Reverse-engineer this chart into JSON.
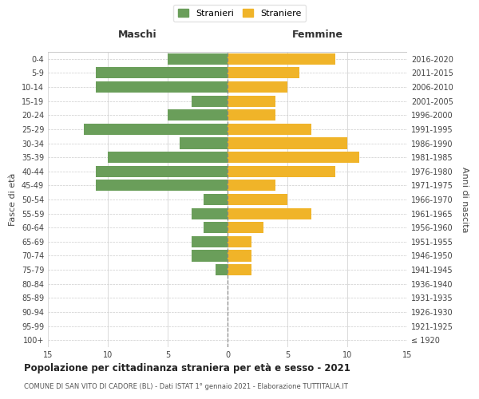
{
  "age_groups": [
    "100+",
    "95-99",
    "90-94",
    "85-89",
    "80-84",
    "75-79",
    "70-74",
    "65-69",
    "60-64",
    "55-59",
    "50-54",
    "45-49",
    "40-44",
    "35-39",
    "30-34",
    "25-29",
    "20-24",
    "15-19",
    "10-14",
    "5-9",
    "0-4"
  ],
  "birth_years": [
    "≤ 1920",
    "1921-1925",
    "1926-1930",
    "1931-1935",
    "1936-1940",
    "1941-1945",
    "1946-1950",
    "1951-1955",
    "1956-1960",
    "1961-1965",
    "1966-1970",
    "1971-1975",
    "1976-1980",
    "1981-1985",
    "1986-1990",
    "1991-1995",
    "1996-2000",
    "2001-2005",
    "2006-2010",
    "2011-2015",
    "2016-2020"
  ],
  "males": [
    0,
    0,
    0,
    0,
    0,
    1,
    3,
    3,
    2,
    3,
    2,
    11,
    11,
    10,
    4,
    12,
    5,
    3,
    11,
    11,
    5
  ],
  "females": [
    0,
    0,
    0,
    0,
    0,
    2,
    2,
    2,
    3,
    7,
    5,
    4,
    9,
    11,
    10,
    7,
    4,
    4,
    5,
    6,
    9
  ],
  "male_color": "#6a9e5a",
  "female_color": "#f0b429",
  "background_color": "#ffffff",
  "grid_color": "#cccccc",
  "title": "Popolazione per cittadinanza straniera per età e sesso - 2021",
  "subtitle": "COMUNE DI SAN VITO DI CADORE (BL) - Dati ISTAT 1° gennaio 2021 - Elaborazione TUTTITALIA.IT",
  "xlabel_left": "Maschi",
  "xlabel_right": "Femmine",
  "ylabel_left": "Fasce di età",
  "ylabel_right": "Anni di nascita",
  "legend_male": "Stranieri",
  "legend_female": "Straniere",
  "xlim": 15,
  "bar_height": 0.8,
  "tick_color": "#888888",
  "center_line_color": "#888888",
  "label_color": "#444444"
}
